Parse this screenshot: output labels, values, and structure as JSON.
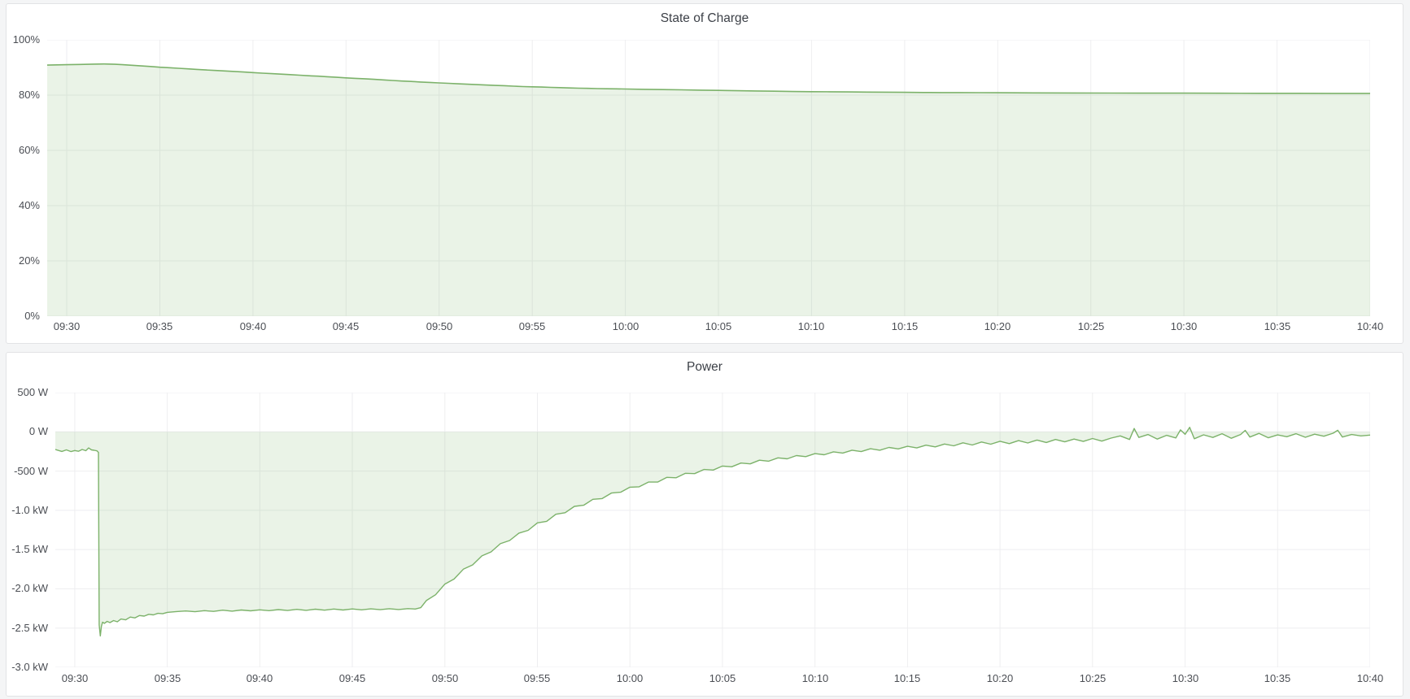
{
  "panels": [
    {
      "title": "State of Charge"
    },
    {
      "title": "Power"
    }
  ],
  "colors": {
    "page_background": "#f4f5f6",
    "panel_background": "#ffffff",
    "panel_border": "#e2e3e5",
    "grid": "#eeeef0",
    "series_green_line": "#7cb26a",
    "series_green_fill": "rgba(124,178,106,0.16)",
    "tick_text": "#4b4e54",
    "title_text": "#3d4148"
  },
  "chart_data": [
    {
      "type": "area",
      "title": "State of Charge",
      "xlabel": "",
      "ylabel": "",
      "x_range": [
        -1.05,
        70
      ],
      "y_range": [
        0,
        100
      ],
      "fill_to": 0,
      "grid": true,
      "legend": "none",
      "line_width": 1.6,
      "x_ticks": {
        "t": [
          0,
          5,
          10,
          15,
          20,
          25,
          30,
          35,
          40,
          45,
          50,
          55,
          60,
          65,
          70
        ],
        "labels": [
          "09:30",
          "09:35",
          "09:40",
          "09:45",
          "09:50",
          "09:55",
          "10:00",
          "10:05",
          "10:10",
          "10:15",
          "10:20",
          "10:25",
          "10:30",
          "10:35",
          "10:40"
        ]
      },
      "y_ticks": {
        "v": [
          0,
          20,
          40,
          60,
          80,
          100
        ],
        "labels": [
          "0%",
          "20%",
          "40%",
          "60%",
          "80%",
          "100%"
        ]
      },
      "points": [
        [
          -1.05,
          90.85
        ],
        [
          0,
          91.0
        ],
        [
          0.7,
          91.1
        ],
        [
          1.4,
          91.2
        ],
        [
          2,
          91.25
        ],
        [
          2.6,
          91.15
        ],
        [
          3,
          91.0
        ],
        [
          3.5,
          90.8
        ],
        [
          4,
          90.55
        ],
        [
          4.5,
          90.35
        ],
        [
          5,
          90.1
        ],
        [
          5.5,
          89.9
        ],
        [
          6,
          89.7
        ],
        [
          6.5,
          89.5
        ],
        [
          7,
          89.3
        ],
        [
          7.5,
          89.1
        ],
        [
          8,
          88.9
        ],
        [
          8.5,
          88.75
        ],
        [
          9,
          88.55
        ],
        [
          9.5,
          88.35
        ],
        [
          10,
          88.15
        ],
        [
          10.5,
          87.95
        ],
        [
          11,
          87.75
        ],
        [
          11.5,
          87.6
        ],
        [
          12,
          87.4
        ],
        [
          12.5,
          87.2
        ],
        [
          13,
          87.0
        ],
        [
          13.5,
          86.85
        ],
        [
          14,
          86.65
        ],
        [
          14.5,
          86.45
        ],
        [
          15,
          86.25
        ],
        [
          15.5,
          86.05
        ],
        [
          16,
          85.9
        ],
        [
          16.5,
          85.7
        ],
        [
          17,
          85.5
        ],
        [
          17.5,
          85.3
        ],
        [
          18,
          85.1
        ],
        [
          18.5,
          84.95
        ],
        [
          19,
          84.75
        ],
        [
          19.5,
          84.6
        ],
        [
          20,
          84.4
        ],
        [
          20.5,
          84.25
        ],
        [
          21,
          84.1
        ],
        [
          21.5,
          83.95
        ],
        [
          22,
          83.8
        ],
        [
          22.5,
          83.65
        ],
        [
          23,
          83.5
        ],
        [
          23.5,
          83.4
        ],
        [
          24,
          83.25
        ],
        [
          24.5,
          83.1
        ],
        [
          25,
          83.0
        ],
        [
          25.5,
          82.9
        ],
        [
          26,
          82.8
        ],
        [
          26.5,
          82.7
        ],
        [
          27,
          82.6
        ],
        [
          27.5,
          82.5
        ],
        [
          28,
          82.45
        ],
        [
          28.5,
          82.35
        ],
        [
          29,
          82.3
        ],
        [
          29.5,
          82.25
        ],
        [
          30,
          82.2
        ],
        [
          31,
          82.1
        ],
        [
          32,
          82.0
        ],
        [
          33,
          81.9
        ],
        [
          34,
          81.8
        ],
        [
          35,
          81.7
        ],
        [
          36,
          81.6
        ],
        [
          37,
          81.5
        ],
        [
          38,
          81.4
        ],
        [
          39,
          81.3
        ],
        [
          40,
          81.25
        ],
        [
          41,
          81.2
        ],
        [
          42,
          81.15
        ],
        [
          43,
          81.1
        ],
        [
          44,
          81.05
        ],
        [
          45,
          81.0
        ],
        [
          46,
          80.95
        ],
        [
          47,
          80.92
        ],
        [
          48,
          80.9
        ],
        [
          49,
          80.88
        ],
        [
          50,
          80.85
        ],
        [
          52,
          80.8
        ],
        [
          54,
          80.77
        ],
        [
          56,
          80.74
        ],
        [
          58,
          80.72
        ],
        [
          60,
          80.7
        ],
        [
          62,
          80.68
        ],
        [
          64,
          80.66
        ],
        [
          66,
          80.64
        ],
        [
          68,
          80.63
        ],
        [
          70,
          80.62
        ]
      ]
    },
    {
      "type": "area",
      "title": "Power",
      "xlabel": "",
      "ylabel": "",
      "x_range": [
        -1.05,
        70
      ],
      "y_range": [
        -3000,
        500
      ],
      "fill_to": 0,
      "grid": true,
      "legend": "none",
      "line_width": 1.4,
      "x_ticks": {
        "t": [
          0,
          5,
          10,
          15,
          20,
          25,
          30,
          35,
          40,
          45,
          50,
          55,
          60,
          65,
          70
        ],
        "labels": [
          "09:30",
          "09:35",
          "09:40",
          "09:45",
          "09:50",
          "09:55",
          "10:00",
          "10:05",
          "10:10",
          "10:15",
          "10:20",
          "10:25",
          "10:30",
          "10:35",
          "10:40"
        ]
      },
      "y_ticks": {
        "v": [
          500,
          0,
          -500,
          -1000,
          -1500,
          -2000,
          -2500,
          -3000
        ],
        "labels": [
          "500 W",
          "0 W",
          "-500 W",
          "-1.0 kW",
          "-1.5 kW",
          "-2.0 kW",
          "-2.5 kW",
          "-3.0 kW"
        ]
      },
      "points": [
        [
          -1.05,
          -225
        ],
        [
          -0.7,
          -250
        ],
        [
          -0.45,
          -230
        ],
        [
          -0.2,
          -252
        ],
        [
          0,
          -238
        ],
        [
          0.2,
          -248
        ],
        [
          0.4,
          -225
        ],
        [
          0.6,
          -240
        ],
        [
          0.75,
          -205
        ],
        [
          0.9,
          -230
        ],
        [
          1.05,
          -235
        ],
        [
          1.2,
          -242
        ],
        [
          1.28,
          -262
        ],
        [
          1.32,
          -2460
        ],
        [
          1.38,
          -2600
        ],
        [
          1.44,
          -2480
        ],
        [
          1.5,
          -2425
        ],
        [
          1.6,
          -2440
        ],
        [
          1.75,
          -2415
        ],
        [
          1.9,
          -2430
        ],
        [
          2.1,
          -2405
        ],
        [
          2.3,
          -2420
        ],
        [
          2.5,
          -2385
        ],
        [
          2.75,
          -2395
        ],
        [
          3,
          -2360
        ],
        [
          3.25,
          -2370
        ],
        [
          3.5,
          -2340
        ],
        [
          3.75,
          -2348
        ],
        [
          4,
          -2325
        ],
        [
          4.25,
          -2332
        ],
        [
          4.5,
          -2312
        ],
        [
          4.75,
          -2318
        ],
        [
          5,
          -2300
        ],
        [
          5.5,
          -2290
        ],
        [
          6,
          -2282
        ],
        [
          6.5,
          -2292
        ],
        [
          7,
          -2278
        ],
        [
          7.5,
          -2288
        ],
        [
          8,
          -2272
        ],
        [
          8.5,
          -2284
        ],
        [
          9,
          -2270
        ],
        [
          9.5,
          -2280
        ],
        [
          10,
          -2268
        ],
        [
          10.5,
          -2278
        ],
        [
          11,
          -2265
        ],
        [
          11.5,
          -2276
        ],
        [
          12,
          -2262
        ],
        [
          12.5,
          -2274
        ],
        [
          13,
          -2260
        ],
        [
          13.5,
          -2272
        ],
        [
          14,
          -2258
        ],
        [
          14.5,
          -2270
        ],
        [
          15,
          -2256
        ],
        [
          15.5,
          -2268
        ],
        [
          16,
          -2255
        ],
        [
          16.5,
          -2266
        ],
        [
          17,
          -2253
        ],
        [
          17.5,
          -2264
        ],
        [
          18,
          -2252
        ],
        [
          18.4,
          -2258
        ],
        [
          18.7,
          -2240
        ],
        [
          19,
          -2150
        ],
        [
          19.5,
          -2075
        ],
        [
          20,
          -1940
        ],
        [
          20.5,
          -1875
        ],
        [
          21,
          -1750
        ],
        [
          21.5,
          -1695
        ],
        [
          22,
          -1580
        ],
        [
          22.5,
          -1530
        ],
        [
          23,
          -1425
        ],
        [
          23.5,
          -1385
        ],
        [
          24,
          -1290
        ],
        [
          24.5,
          -1255
        ],
        [
          25,
          -1160
        ],
        [
          25.5,
          -1140
        ],
        [
          26,
          -1050
        ],
        [
          26.5,
          -1030
        ],
        [
          27,
          -950
        ],
        [
          27.5,
          -935
        ],
        [
          28,
          -860
        ],
        [
          28.5,
          -850
        ],
        [
          29,
          -780
        ],
        [
          29.5,
          -770
        ],
        [
          30,
          -705
        ],
        [
          30.5,
          -700
        ],
        [
          31,
          -640
        ],
        [
          31.5,
          -640
        ],
        [
          32,
          -580
        ],
        [
          32.5,
          -585
        ],
        [
          33,
          -528
        ],
        [
          33.5,
          -532
        ],
        [
          34,
          -480
        ],
        [
          34.5,
          -487
        ],
        [
          35,
          -436
        ],
        [
          35.5,
          -445
        ],
        [
          36,
          -398
        ],
        [
          36.5,
          -408
        ],
        [
          37,
          -362
        ],
        [
          37.5,
          -374
        ],
        [
          38,
          -332
        ],
        [
          38.5,
          -344
        ],
        [
          39,
          -303
        ],
        [
          39.5,
          -316
        ],
        [
          40,
          -278
        ],
        [
          40.5,
          -292
        ],
        [
          41,
          -255
        ],
        [
          41.5,
          -270
        ],
        [
          42,
          -234
        ],
        [
          42.5,
          -252
        ],
        [
          43,
          -216
        ],
        [
          43.5,
          -234
        ],
        [
          44,
          -199
        ],
        [
          44.5,
          -218
        ],
        [
          45,
          -184
        ],
        [
          45.5,
          -205
        ],
        [
          46,
          -170
        ],
        [
          46.5,
          -192
        ],
        [
          47,
          -155
        ],
        [
          47.5,
          -178
        ],
        [
          48,
          -140
        ],
        [
          48.5,
          -168
        ],
        [
          49,
          -130
        ],
        [
          49.5,
          -158
        ],
        [
          50,
          -120
        ],
        [
          50.5,
          -150
        ],
        [
          51,
          -112
        ],
        [
          51.5,
          -142
        ],
        [
          52,
          -105
        ],
        [
          52.5,
          -136
        ],
        [
          53,
          -98
        ],
        [
          53.5,
          -128
        ],
        [
          54,
          -92
        ],
        [
          54.5,
          -122
        ],
        [
          55,
          -85
        ],
        [
          55.5,
          -118
        ],
        [
          56,
          -80
        ],
        [
          56.5,
          -52
        ],
        [
          57,
          -98
        ],
        [
          57.25,
          42
        ],
        [
          57.5,
          -72
        ],
        [
          58,
          -34
        ],
        [
          58.5,
          -92
        ],
        [
          59,
          -45
        ],
        [
          59.5,
          -78
        ],
        [
          59.75,
          25
        ],
        [
          60,
          -32
        ],
        [
          60.25,
          58
        ],
        [
          60.5,
          -88
        ],
        [
          61,
          -38
        ],
        [
          61.5,
          -72
        ],
        [
          62,
          -24
        ],
        [
          62.5,
          -82
        ],
        [
          63,
          -34
        ],
        [
          63.25,
          18
        ],
        [
          63.5,
          -66
        ],
        [
          64,
          -20
        ],
        [
          64.5,
          -76
        ],
        [
          65,
          -40
        ],
        [
          65.5,
          -62
        ],
        [
          66,
          -24
        ],
        [
          66.5,
          -70
        ],
        [
          67,
          -30
        ],
        [
          67.5,
          -56
        ],
        [
          68,
          -18
        ],
        [
          68.25,
          20
        ],
        [
          68.5,
          -66
        ],
        [
          69,
          -34
        ],
        [
          69.5,
          -52
        ],
        [
          70,
          -42
        ]
      ]
    }
  ]
}
